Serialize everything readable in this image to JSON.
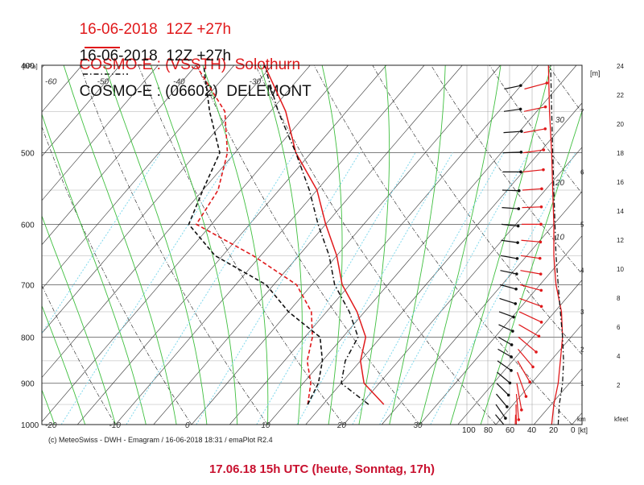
{
  "header": {
    "line1": "16-06-2018  12Z +27h",
    "line1_model": "COSMO-E : (VSSTH)  Solothurn",
    "line2": "16-06-2018  12Z +27h",
    "line2_model": "COSMO-E : (06602)  DELEMONT"
  },
  "credit": "(c) MeteoSwiss - DWH - Emagram / 16-06-2018  18:31 / emaPlot R2.4",
  "caption": "17.06.18 15h UTC (heute, Sonntag, 17h)",
  "colors": {
    "red": "#e0191b",
    "black": "#111111",
    "dry_adiabat": "#1a1a1a",
    "moist_adiabat": "#3fbf3f",
    "mixing_ratio": "#7fd8ec",
    "isobar": "#555555",
    "caption": "#c8102e"
  },
  "chart_data": {
    "type": "line",
    "title": "16-06-2018 12Z +27h COSMO-E",
    "pressure_unit": "[hPa]",
    "pressure_ticks": [
      400,
      500,
      600,
      700,
      800,
      900,
      1000
    ],
    "temperature_ticks": [
      -60,
      -50,
      -40,
      -30,
      -20,
      -10,
      0,
      10,
      20,
      30
    ],
    "height_unit_left": "[m]",
    "height_ticks_left": [
      1,
      2,
      3,
      4,
      5,
      6,
      7
    ],
    "height_unit_km": "km",
    "height_unit_kfeet": "kfeet",
    "kfeet_ticks": [
      2,
      4,
      6,
      8,
      10,
      12,
      14,
      16,
      18,
      20,
      22,
      24
    ],
    "wind_unit": "[kt]",
    "wind_ticks": [
      100,
      80,
      60,
      40,
      20,
      0
    ],
    "wind_profile_ticks": [
      10,
      20,
      30
    ],
    "series": [
      {
        "name": "COSMO-E : (VSSTH)  Solothurn",
        "style": "solid",
        "temperature": [
          [
            950,
            23
          ],
          [
            900,
            18
          ],
          [
            850,
            15
          ],
          [
            800,
            13
          ],
          [
            750,
            9
          ],
          [
            700,
            4
          ],
          [
            650,
            0
          ],
          [
            600,
            -5
          ],
          [
            550,
            -10
          ],
          [
            500,
            -17
          ],
          [
            450,
            -23
          ],
          [
            400,
            -31
          ]
        ],
        "dewpoint": [
          [
            950,
            13
          ],
          [
            900,
            11
          ],
          [
            850,
            8
          ],
          [
            800,
            6
          ],
          [
            750,
            3
          ],
          [
            700,
            -2
          ],
          [
            650,
            -11
          ],
          [
            600,
            -22
          ],
          [
            550,
            -23
          ],
          [
            500,
            -26
          ],
          [
            450,
            -31
          ],
          [
            400,
            -40
          ]
        ]
      },
      {
        "name": "COSMO-E : (06602)  DELEMONT",
        "style": "dash-dot",
        "temperature": [
          [
            950,
            21
          ],
          [
            900,
            15
          ],
          [
            850,
            13
          ],
          [
            800,
            12
          ],
          [
            750,
            8
          ],
          [
            700,
            3
          ],
          [
            650,
            -1
          ],
          [
            600,
            -6
          ],
          [
            550,
            -11
          ],
          [
            500,
            -17
          ],
          [
            450,
            -24
          ],
          [
            400,
            -31
          ]
        ],
        "dewpoint": [
          [
            950,
            13
          ],
          [
            900,
            12
          ],
          [
            850,
            10
          ],
          [
            800,
            7
          ],
          [
            750,
            0
          ],
          [
            700,
            -6
          ],
          [
            650,
            -16
          ],
          [
            600,
            -23
          ],
          [
            550,
            -25
          ],
          [
            500,
            -27
          ],
          [
            450,
            -33
          ],
          [
            400,
            -39
          ]
        ]
      }
    ],
    "wind_barbs": [
      {
        "name": "COSMO-E : (VSSTH)  Solothurn",
        "levels": [
          [
            975,
            2,
            26
          ],
          [
            950,
            359,
            30
          ],
          [
            925,
            355,
            30
          ],
          [
            900,
            350,
            32
          ],
          [
            875,
            340,
            30
          ],
          [
            850,
            330,
            28
          ],
          [
            825,
            320,
            26
          ],
          [
            800,
            310,
            26
          ],
          [
            775,
            300,
            26
          ],
          [
            750,
            295,
            28
          ],
          [
            725,
            290,
            26
          ],
          [
            700,
            285,
            24
          ],
          [
            675,
            280,
            22
          ],
          [
            650,
            278,
            20
          ],
          [
            625,
            275,
            20
          ],
          [
            600,
            270,
            20
          ],
          [
            575,
            268,
            20
          ],
          [
            550,
            266,
            20
          ],
          [
            525,
            264,
            22
          ],
          [
            500,
            262,
            22
          ],
          [
            475,
            260,
            24
          ],
          [
            450,
            258,
            24
          ],
          [
            425,
            255,
            26
          ],
          [
            400,
            252,
            26
          ]
        ]
      },
      {
        "name": "COSMO-E : (06602)  DELEMONT",
        "levels": [
          [
            975,
            320,
            14
          ],
          [
            950,
            325,
            16
          ],
          [
            925,
            320,
            16
          ],
          [
            900,
            315,
            16
          ],
          [
            875,
            310,
            16
          ],
          [
            850,
            305,
            16
          ],
          [
            825,
            300,
            14
          ],
          [
            800,
            300,
            14
          ],
          [
            775,
            295,
            14
          ],
          [
            750,
            290,
            14
          ],
          [
            725,
            288,
            16
          ],
          [
            700,
            285,
            16
          ],
          [
            675,
            282,
            16
          ],
          [
            650,
            280,
            16
          ],
          [
            625,
            278,
            16
          ],
          [
            600,
            276,
            16
          ],
          [
            575,
            274,
            16
          ],
          [
            550,
            272,
            16
          ],
          [
            525,
            270,
            18
          ],
          [
            500,
            268,
            18
          ],
          [
            475,
            266,
            18
          ],
          [
            450,
            262,
            16
          ],
          [
            425,
            258,
            16
          ],
          [
            400,
            255,
            14
          ]
        ]
      }
    ],
    "wind_profile": [
      {
        "name": "COSMO-E : (VSSTH)  Solothurn",
        "points": [
          [
            1000,
            22
          ],
          [
            950,
            20
          ],
          [
            900,
            16
          ],
          [
            850,
            14
          ],
          [
            800,
            12
          ],
          [
            750,
            13
          ],
          [
            700,
            18
          ],
          [
            650,
            20
          ],
          [
            600,
            20
          ],
          [
            550,
            21
          ],
          [
            500,
            22
          ],
          [
            450,
            24
          ],
          [
            400,
            25
          ]
        ]
      },
      {
        "name": "COSMO-E : (06602)  DELEMONT",
        "points": [
          [
            1000,
            16
          ],
          [
            950,
            15
          ],
          [
            900,
            12
          ],
          [
            850,
            11
          ],
          [
            800,
            12
          ],
          [
            750,
            14
          ],
          [
            700,
            16
          ],
          [
            650,
            18
          ],
          [
            600,
            19
          ],
          [
            550,
            20
          ],
          [
            500,
            21
          ],
          [
            450,
            22
          ],
          [
            400,
            23
          ]
        ]
      }
    ]
  }
}
